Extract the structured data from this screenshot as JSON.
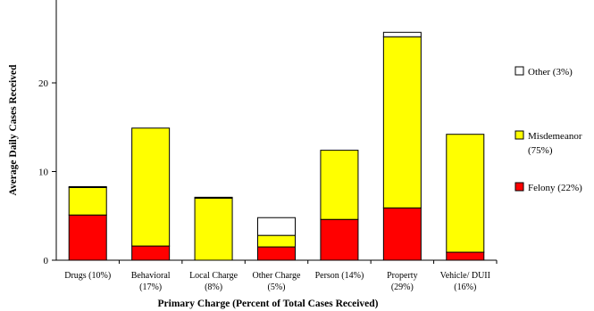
{
  "chart_data": {
    "type": "bar",
    "stacked": true,
    "xlabel": "Primary Charge (Percent of Total Cases Received)",
    "ylabel": "Average Daily Cases Received",
    "ylim": [
      0,
      30
    ],
    "yticks": [
      0,
      10,
      20
    ],
    "categories": [
      [
        "Drugs (10%)"
      ],
      [
        "Behavioral",
        "(17%)"
      ],
      [
        "Local Charge",
        "(8%)"
      ],
      [
        "Other Charge",
        "(5%)"
      ],
      [
        "Person (14%)"
      ],
      [
        "Property",
        "(29%)"
      ],
      [
        "Vehicle/ DUII",
        "(16%)"
      ]
    ],
    "series": [
      {
        "name": "Felony (22%)",
        "color": "#ff0000",
        "values": [
          5.1,
          1.6,
          0.0,
          1.5,
          4.6,
          5.9,
          0.9
        ]
      },
      {
        "name": "Misdemeanor (75%)",
        "color": "#ffff00",
        "values": [
          3.1,
          13.3,
          7.0,
          1.3,
          7.8,
          19.3,
          13.3
        ]
      },
      {
        "name": "Other (3%)",
        "color": "#ffffff",
        "values": [
          0.1,
          0.0,
          0.1,
          2.0,
          0.0,
          0.5,
          0.0
        ]
      }
    ],
    "legend": {
      "placement": "right",
      "entries": [
        {
          "label_lines": [
            "Other (3%)"
          ],
          "color": "#ffffff"
        },
        {
          "label_lines": [
            "Misdemeanor",
            "(75%)"
          ],
          "color": "#ffff00"
        },
        {
          "label_lines": [
            "Felony (22%)"
          ],
          "color": "#ff0000"
        }
      ]
    },
    "grid": false
  }
}
